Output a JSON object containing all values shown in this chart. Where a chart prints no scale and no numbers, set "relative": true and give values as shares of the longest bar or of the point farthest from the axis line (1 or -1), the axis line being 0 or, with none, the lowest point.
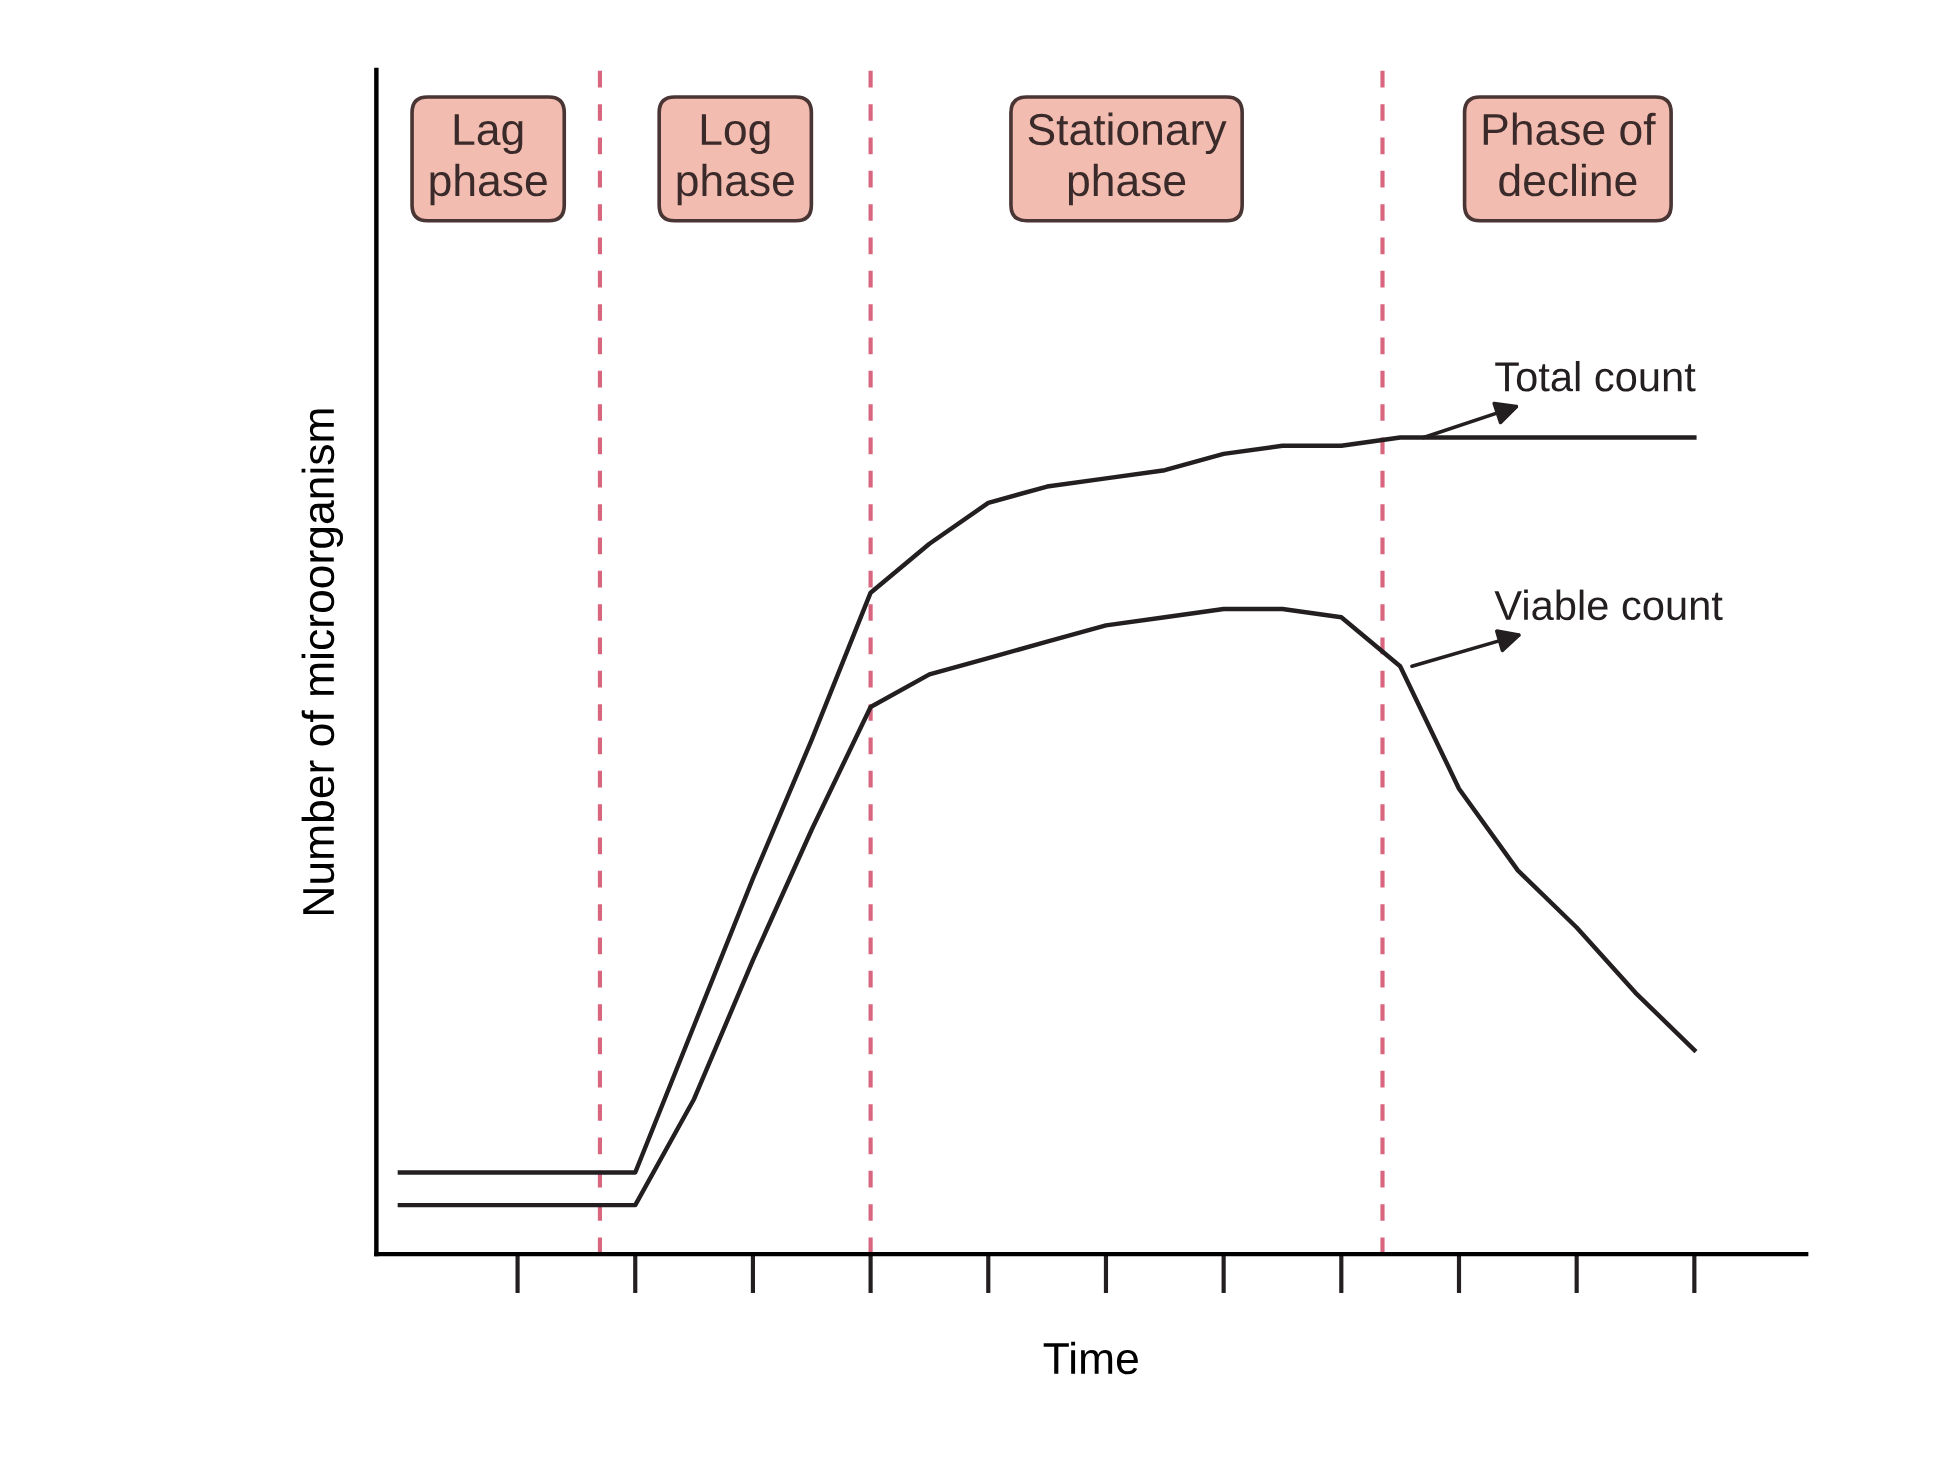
{
  "chart_data": {
    "type": "line",
    "relative": true,
    "xlabel": "Time",
    "ylabel": "Number of microorganism",
    "categories": [
      null,
      null,
      null,
      null,
      null,
      null,
      null,
      null,
      null,
      null,
      null,
      null,
      null,
      null,
      null,
      null,
      null,
      null,
      null,
      null,
      null,
      null,
      null
    ],
    "series": [
      {
        "name": "Total count",
        "color": "#231f20",
        "values": [
          0.1,
          0.1,
          0.1,
          0.1,
          0.1,
          0.28,
          0.46,
          0.63,
          0.81,
          0.87,
          0.92,
          0.94,
          0.95,
          0.96,
          0.98,
          0.99,
          0.99,
          1.0,
          1.0,
          1.0,
          1.0,
          1.0,
          1.0
        ]
      },
      {
        "name": "Viable count",
        "color": "#231f20",
        "values": [
          0.06,
          0.06,
          0.06,
          0.06,
          0.06,
          0.19,
          0.36,
          0.52,
          0.67,
          0.71,
          0.73,
          0.75,
          0.77,
          0.78,
          0.79,
          0.79,
          0.78,
          0.72,
          0.57,
          0.47,
          0.4,
          0.32,
          0.25
        ]
      }
    ],
    "annotations": [
      "Lag\nphase",
      "Log\nphase",
      "Stationary\nphase",
      "Phase of\ndecline"
    ],
    "grid": false,
    "legend": false,
    "marker": "none",
    "line_style": "solid"
  }
}
